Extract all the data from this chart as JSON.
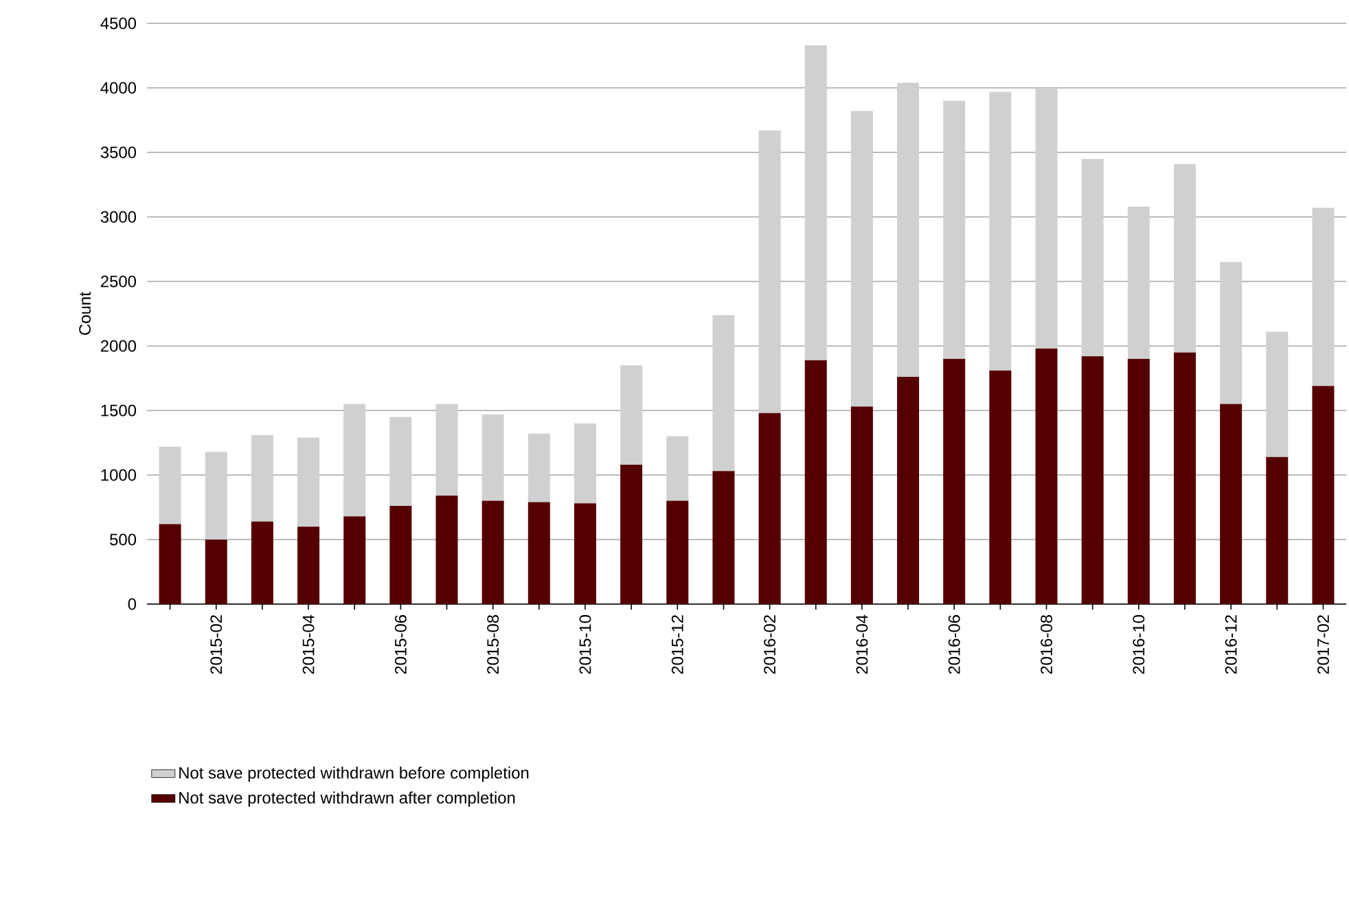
{
  "chart_data": {
    "type": "bar",
    "stacked": true,
    "ylabel": "Count",
    "categories": [
      null,
      "2015-02",
      null,
      "2015-04",
      null,
      "2015-06",
      null,
      "2015-08",
      null,
      "2015-10",
      null,
      "2015-12",
      null,
      "2016-02",
      null,
      "2016-04",
      null,
      "2016-06",
      null,
      "2016-08",
      null,
      "2016-10",
      null,
      "2016-12",
      null,
      "2017-02"
    ],
    "series": [
      {
        "name": "Not save protected withdrawn after completion",
        "color": "#550000",
        "values": [
          620,
          500,
          640,
          600,
          680,
          760,
          840,
          800,
          790,
          780,
          1080,
          800,
          1030,
          1480,
          1890,
          1530,
          1760,
          1900,
          1810,
          1980,
          1920,
          1900,
          1950,
          1550,
          1140,
          1690
        ]
      },
      {
        "name": "Not save protected withdrawn before completion",
        "color": "#d0d0d0",
        "values": [
          600,
          680,
          670,
          690,
          870,
          690,
          710,
          670,
          530,
          620,
          770,
          500,
          1210,
          2190,
          2440,
          2290,
          2280,
          2000,
          2160,
          2020,
          1530,
          1180,
          1460,
          1100,
          970,
          1380
        ]
      }
    ],
    "ylim": [
      0,
      4500
    ],
    "yticks": [
      0,
      500,
      1000,
      1500,
      2000,
      2500,
      3000,
      3500,
      4000,
      4500
    ],
    "grid": "y",
    "legend": "bottom"
  }
}
